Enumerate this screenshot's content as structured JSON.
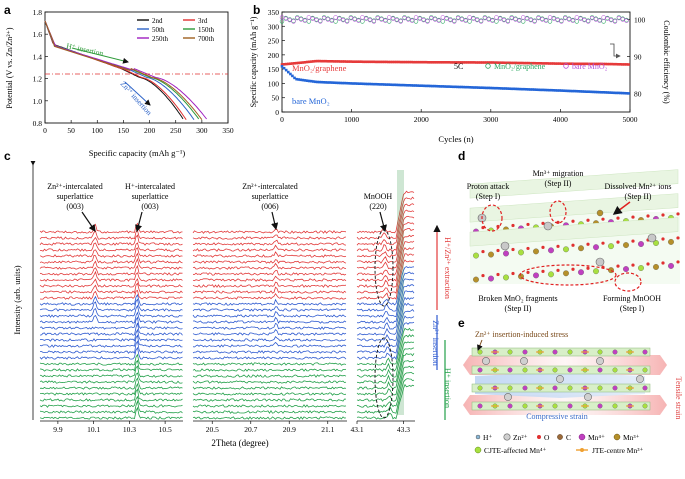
{
  "panels": {
    "a": {
      "letter": "a",
      "ylabel": "Potential (V vs. Zn/Zn²⁺)",
      "xlabel": "Specific capacity (mAh g⁻¹)",
      "h_label": "H⁺ insertion",
      "zn_label": "Zn²⁺ insertion"
    },
    "b": {
      "letter": "b",
      "ylabel_left": "Specific capacity (mAh g⁻¹)",
      "ylabel_right": "Coulombic efficiency (%)",
      "xlabel": "Cycles (n)",
      "rate": "5C",
      "series_label_top": "MnO₂/graphene",
      "series_label_bottom": "bare MnO₂",
      "ce_legend_1": "MnO₂/graphene",
      "ce_legend_2": "bare MnO₂"
    },
    "c": {
      "letter": "c",
      "ylabel": "Intensity (arb. units)",
      "xlabel": "2Theta (degree)",
      "ann1_l1": "Zn²⁺-intercalated",
      "ann1_l2": "superlattice",
      "ann1_l3": "(003)",
      "ann2_l1": "H⁺-intercalated",
      "ann2_l2": "superlattice",
      "ann2_l3": "(003)",
      "ann3_l1": "Zn²⁺-intercalated",
      "ann3_l2": "superlattice",
      "ann3_l3": "(006)",
      "ann4_l1": "MnOOH",
      "ann4_l2": "(220)",
      "side_red": "H⁺/Zn²⁺ extraction",
      "side_blue": "Zn²⁺ insertion",
      "side_green": "H⁺ insertion"
    },
    "d": {
      "letter": "d",
      "proton_attack_1": "Proton attack",
      "proton_attack_2": "(Step I)",
      "mn_migration_1": "Mn³⁺ migration",
      "mn_migration_2": "(Step II)",
      "dissolved_1": "Dissolved Mn²⁺ ions",
      "dissolved_2": "(Step II)",
      "broken_1": "Broken MnO₂ fragments",
      "broken_2": "(Step II)",
      "forming_1": "Forming MnOOH",
      "forming_2": "(Step I)"
    },
    "e": {
      "letter": "e",
      "stress": "Zn²⁺ insertion-induced stress",
      "tensile": "Tensile strain",
      "compressive": "Compressive strain",
      "legend": {
        "h": "H⁺",
        "zn": "Zn²⁺",
        "o": "O",
        "c": "C",
        "mn4": "Mn⁴⁺",
        "mn3": "Mn³⁺",
        "cjte": "CJTE-affected Mn⁴⁺",
        "jte": "JTE-centre Mn³⁺"
      }
    }
  },
  "chart_data": [
    {
      "id": "a",
      "type": "line",
      "title": "",
      "xlabel": "Specific capacity (mAh g⁻¹)",
      "ylabel": "Potential (V vs. Zn/Zn²⁺)",
      "xlim": [
        0,
        350
      ],
      "ylim": [
        0.8,
        1.8
      ],
      "xticks": [
        "0",
        "50",
        "100",
        "150",
        "200",
        "250",
        "300",
        "350"
      ],
      "yticks": [
        "0.8",
        "1.0",
        "1.2",
        "1.4",
        "1.6",
        "1.8"
      ],
      "reference_line_y": 1.25,
      "series": [
        {
          "name": "2nd",
          "color": "#111111",
          "end_capacity": 265
        },
        {
          "name": "3rd",
          "color": "#e03030",
          "end_capacity": 270
        },
        {
          "name": "50th",
          "color": "#2e64c8",
          "end_capacity": 285
        },
        {
          "name": "150th",
          "color": "#2e9b3a",
          "end_capacity": 295
        },
        {
          "name": "250th",
          "color": "#a020c0",
          "end_capacity": 310
        },
        {
          "name": "700th",
          "color": "#a06020",
          "end_capacity": 300
        }
      ]
    },
    {
      "id": "b",
      "type": "scatter",
      "xlabel": "Cycles (n)",
      "ylabel": "Specific capacity (mAh g⁻¹)",
      "y2label": "Coulombic efficiency (%)",
      "xlim": [
        0,
        5000
      ],
      "ylim": [
        0,
        350
      ],
      "y2lim": [
        75,
        102
      ],
      "xticks": [
        "0",
        "1000",
        "2000",
        "3000",
        "4000",
        "5000"
      ],
      "yticks": [
        "0",
        "50",
        "100",
        "150",
        "200",
        "250",
        "300",
        "350"
      ],
      "y2ticks": [
        "80",
        "90",
        "100"
      ],
      "series": [
        {
          "name": "MnO₂/graphene capacity",
          "color": "#e63a3a",
          "x": [
            0,
            500,
            1000,
            2000,
            3000,
            4000,
            4600,
            5000
          ],
          "y": [
            168,
            180,
            178,
            176,
            175,
            171,
            170,
            168
          ]
        },
        {
          "name": "bare MnO₂ capacity",
          "color": "#2466d8",
          "x": [
            0,
            200,
            500,
            1000,
            2000,
            3000,
            4000,
            5000
          ],
          "y": [
            160,
            115,
            105,
            100,
            92,
            84,
            75,
            65
          ]
        },
        {
          "name": "MnO₂/graphene CE",
          "color": "#2aa860",
          "axis": "y2",
          "x": [
            0,
            5000
          ],
          "y": [
            100,
            100
          ]
        },
        {
          "name": "bare MnO₂ CE",
          "color": "#b450d8",
          "axis": "y2",
          "x": [
            0,
            5000
          ],
          "y": [
            100,
            100
          ]
        }
      ]
    },
    {
      "id": "c",
      "type": "line",
      "xlabel": "2Theta (degree)",
      "ylabel": "Intensity (arb. units)",
      "segments": [
        {
          "range": [
            9.8,
            10.6
          ],
          "ticks": [
            "9.9",
            "10.1",
            "10.3",
            "10.5"
          ]
        },
        {
          "range": [
            20.4,
            21.2
          ],
          "ticks": [
            "20.5",
            "20.7",
            "20.9",
            "21.1"
          ]
        },
        {
          "range": [
            43.1,
            43.35
          ],
          "ticks": [
            "43.1",
            "43.3"
          ]
        }
      ],
      "trace_groups": [
        {
          "name": "H⁺/Zn²⁺ extraction",
          "color": "#e23b3b",
          "count": 12
        },
        {
          "name": "Zn²⁺ insertion",
          "color": "#2f5bd0",
          "count": 10
        },
        {
          "name": "H⁺ insertion",
          "color": "#23a04a",
          "count": 10
        }
      ]
    }
  ]
}
